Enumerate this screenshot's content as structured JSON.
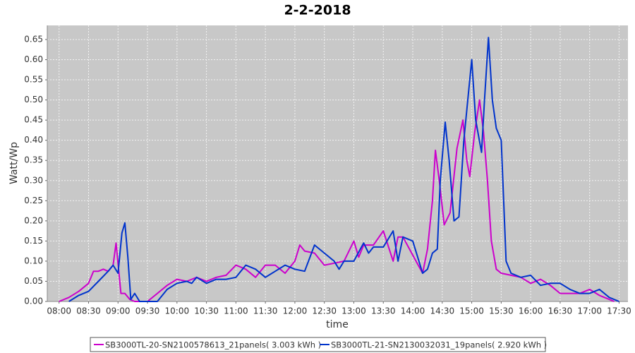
{
  "chart_data": {
    "type": "line",
    "title": "2-2-2018",
    "x_label": "time",
    "y_label": "Watt/Wp",
    "xlim": [
      "07:48",
      "17:39"
    ],
    "xticks": [
      "08:00",
      "08:30",
      "09:00",
      "09:30",
      "10:00",
      "10:30",
      "11:00",
      "11:30",
      "12:00",
      "12:30",
      "13:00",
      "13:30",
      "14:00",
      "14:30",
      "15:00",
      "15:30",
      "16:00",
      "16:30",
      "17:00",
      "17:30"
    ],
    "ylim": [
      0,
      0.685
    ],
    "yticks": [
      {
        "value": 0,
        "label": "0.00"
      },
      0.05,
      {
        "value": 0.1,
        "label": "0.10"
      },
      0.15,
      {
        "value": 0.2,
        "label": "0.20"
      },
      0.25,
      {
        "value": 0.3,
        "label": "0.30"
      },
      0.35,
      {
        "value": 0.4,
        "label": "0.40"
      },
      0.45,
      {
        "value": 0.5,
        "label": "0.50"
      },
      0.55,
      {
        "value": 0.6,
        "label": "0.60"
      },
      0.65
    ],
    "grid": true,
    "legend": "bottom",
    "series": [
      {
        "name": "SB3000TL-20-SN2100578613_21panels( 3.003 kWh )",
        "color": "#cc00cc",
        "x": [
          "08:00",
          "08:10",
          "08:20",
          "08:30",
          "08:35",
          "08:40",
          "08:45",
          "08:50",
          "08:55",
          "08:58",
          "09:03",
          "09:07",
          "09:12",
          "09:17",
          "09:30",
          "09:40",
          "09:50",
          "10:00",
          "10:10",
          "10:20",
          "10:30",
          "10:40",
          "10:50",
          "11:00",
          "11:10",
          "11:20",
          "11:30",
          "11:40",
          "11:50",
          "12:00",
          "12:05",
          "12:10",
          "12:20",
          "12:30",
          "12:40",
          "12:50",
          "13:00",
          "13:05",
          "13:10",
          "13:20",
          "13:30",
          "13:40",
          "13:45",
          "13:50",
          "14:00",
          "14:10",
          "14:15",
          "14:20",
          "14:23",
          "14:27",
          "14:32",
          "14:38",
          "14:45",
          "14:51",
          "14:55",
          "14:58",
          "15:03",
          "15:08",
          "15:12",
          "15:16",
          "15:20",
          "15:25",
          "15:30",
          "15:40",
          "15:50",
          "16:00",
          "16:10",
          "16:20",
          "16:30",
          "16:40",
          "16:50",
          "17:00",
          "17:10",
          "17:20",
          "17:25"
        ],
        "values": [
          0.0,
          0.01,
          0.025,
          0.045,
          0.075,
          0.075,
          0.08,
          0.075,
          0.09,
          0.145,
          0.02,
          0.02,
          0.005,
          0.0,
          0.0,
          0.02,
          0.04,
          0.055,
          0.05,
          0.06,
          0.05,
          0.06,
          0.065,
          0.09,
          0.08,
          0.06,
          0.09,
          0.09,
          0.07,
          0.1,
          0.14,
          0.125,
          0.12,
          0.09,
          0.095,
          0.1,
          0.15,
          0.11,
          0.14,
          0.14,
          0.175,
          0.1,
          0.16,
          0.16,
          0.115,
          0.07,
          0.13,
          0.25,
          0.375,
          0.3,
          0.19,
          0.22,
          0.38,
          0.45,
          0.35,
          0.31,
          0.42,
          0.5,
          0.42,
          0.3,
          0.15,
          0.08,
          0.07,
          0.065,
          0.06,
          0.045,
          0.055,
          0.04,
          0.02,
          0.02,
          0.02,
          0.03,
          0.015,
          0.005,
          0.0
        ]
      },
      {
        "name": "SB3000TL-21-SN2130032031_19panels( 2.920 kWh )",
        "color": "#0033cc",
        "x": [
          "08:10",
          "08:20",
          "08:30",
          "08:40",
          "08:50",
          "08:55",
          "09:00",
          "09:04",
          "09:07",
          "09:10",
          "09:13",
          "09:17",
          "09:22",
          "09:40",
          "09:50",
          "10:00",
          "10:10",
          "10:15",
          "10:20",
          "10:30",
          "10:40",
          "10:50",
          "11:00",
          "11:10",
          "11:20",
          "11:30",
          "11:40",
          "11:50",
          "12:00",
          "12:10",
          "12:20",
          "12:30",
          "12:40",
          "12:45",
          "12:50",
          "13:00",
          "13:10",
          "13:15",
          "13:20",
          "13:30",
          "13:40",
          "13:45",
          "13:50",
          "14:00",
          "14:10",
          "14:15",
          "14:20",
          "14:25",
          "14:28",
          "14:33",
          "14:37",
          "14:42",
          "14:47",
          "14:52",
          "15:00",
          "15:04",
          "15:10",
          "15:13",
          "15:17",
          "15:21",
          "15:25",
          "15:30",
          "15:35",
          "15:40",
          "15:50",
          "16:00",
          "16:10",
          "16:20",
          "16:30",
          "16:40",
          "16:50",
          "17:00",
          "17:10",
          "17:20",
          "17:30"
        ],
        "values": [
          0.0,
          0.015,
          0.025,
          0.05,
          0.075,
          0.09,
          0.07,
          0.17,
          0.195,
          0.11,
          0.005,
          0.02,
          0.0,
          0.0,
          0.03,
          0.045,
          0.05,
          0.045,
          0.06,
          0.045,
          0.055,
          0.055,
          0.06,
          0.09,
          0.08,
          0.06,
          0.075,
          0.09,
          0.08,
          0.075,
          0.14,
          0.12,
          0.1,
          0.08,
          0.1,
          0.1,
          0.145,
          0.12,
          0.135,
          0.135,
          0.175,
          0.1,
          0.16,
          0.15,
          0.07,
          0.08,
          0.12,
          0.13,
          0.3,
          0.445,
          0.35,
          0.2,
          0.21,
          0.4,
          0.6,
          0.45,
          0.37,
          0.5,
          0.655,
          0.5,
          0.43,
          0.4,
          0.1,
          0.07,
          0.06,
          0.065,
          0.04,
          0.045,
          0.045,
          0.03,
          0.02,
          0.02,
          0.03,
          0.01,
          0.0
        ]
      }
    ]
  }
}
